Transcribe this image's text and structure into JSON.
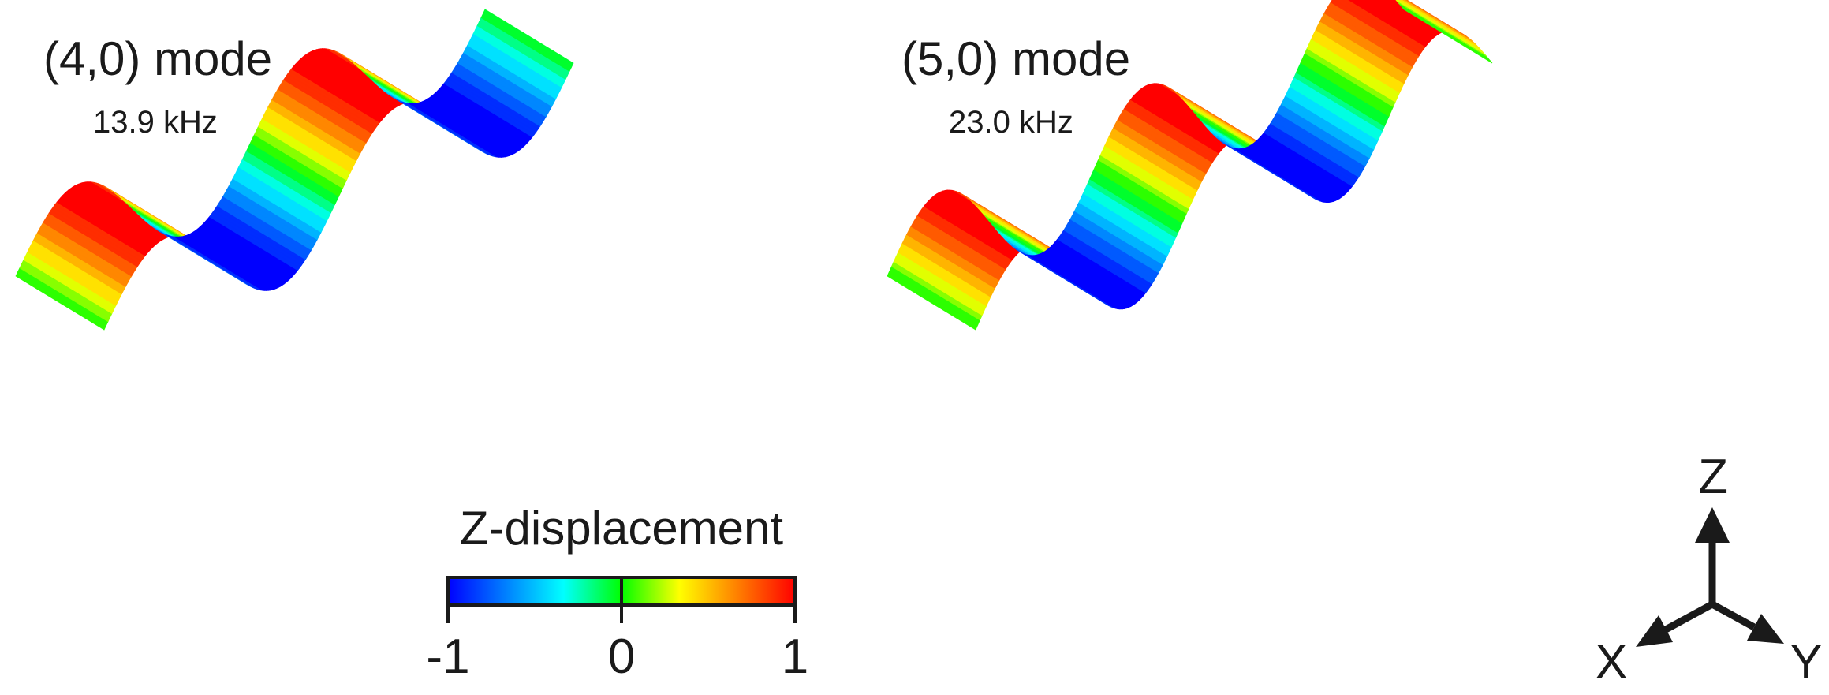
{
  "panels": [
    {
      "title": "(4,0) mode",
      "frequency": "13.9 kHz",
      "half_waves": 4,
      "first_sign": 1
    },
    {
      "title": "(5,0) mode",
      "frequency": "23.0 kHz",
      "half_waves": 5,
      "first_sign": 1
    }
  ],
  "colorbar": {
    "title": "Z-displacement",
    "tick_labels": [
      "-1",
      "0",
      "1"
    ],
    "range": [
      -1,
      1
    ],
    "colors": [
      "#0000ff",
      "#0080ff",
      "#00ffff",
      "#00ff00",
      "#ffff00",
      "#ff8000",
      "#ff0000"
    ]
  },
  "axes_triad": {
    "z_label": "Z",
    "x_label": "X",
    "y_label": "Y"
  }
}
